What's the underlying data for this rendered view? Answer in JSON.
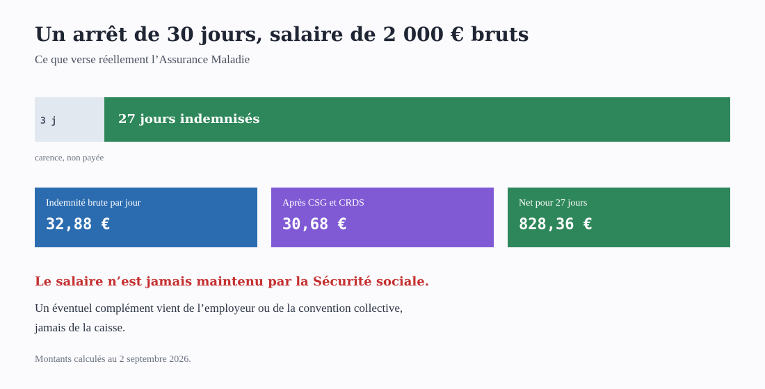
{
  "header": {
    "title": "Un arrêt de 30 jours, salaire de 2 000 € bruts",
    "subtitle": "Ce que verse réellement l’Assurance Maladie"
  },
  "timeline": {
    "carence_label": "3 j",
    "paid_label": "27 jours indemnisés",
    "carence_note": "carence, non payée",
    "carence_days": 3,
    "paid_days": 27,
    "carence_color": "#e2e8f0",
    "paid_color": "#2e875a"
  },
  "cards": [
    {
      "label": "Indemnité brute par jour",
      "value": "32,88 €",
      "color": "#2b6cb0"
    },
    {
      "label": "Après CSG et CRDS",
      "value": "30,68 €",
      "color": "#805ad5"
    },
    {
      "label": "Net pour 27 jours",
      "value": "828,36 €",
      "color": "#2e875a"
    }
  ],
  "notice": {
    "warning": "Le salaire n’est jamais maintenu par la Sécurité sociale.",
    "line1": "Un éventuel complément vient de l’employeur ou de la convention collective,",
    "line2": "jamais de la caisse."
  },
  "footer": {
    "note": "Montants calculés au 2 septembre 2026."
  },
  "colors": {
    "warning": "#c53030",
    "text": "#1f2533",
    "muted": "#6b7280"
  }
}
